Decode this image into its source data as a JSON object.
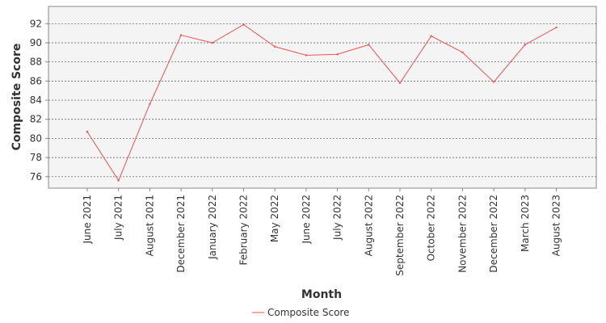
{
  "chart_data": {
    "type": "line",
    "title": "",
    "xlabel": "Month",
    "ylabel": "Composite Score",
    "categories": [
      "June 2021",
      "July 2021",
      "August 2021",
      "December 2021",
      "January 2022",
      "February 2022",
      "May 2022",
      "June 2022",
      "July 2022",
      "August 2022",
      "September 2022",
      "October 2022",
      "November 2022",
      "December 2022",
      "March 2023",
      "August 2023"
    ],
    "series": [
      {
        "name": "Composite Score",
        "color": "#f05050",
        "values": [
          80.7,
          75.6,
          83.6,
          90.8,
          90.0,
          91.9,
          89.6,
          88.7,
          88.8,
          89.8,
          85.8,
          90.7,
          89.0,
          85.9,
          89.8,
          91.6
        ]
      }
    ],
    "yticks": [
      "76",
      "78",
      "80",
      "82",
      "84",
      "86",
      "88",
      "90",
      "92"
    ],
    "ylim": [
      74.8,
      93.8
    ],
    "grid": true,
    "legend_position": "bottom-center",
    "plot_background": "#f4f4f4"
  }
}
